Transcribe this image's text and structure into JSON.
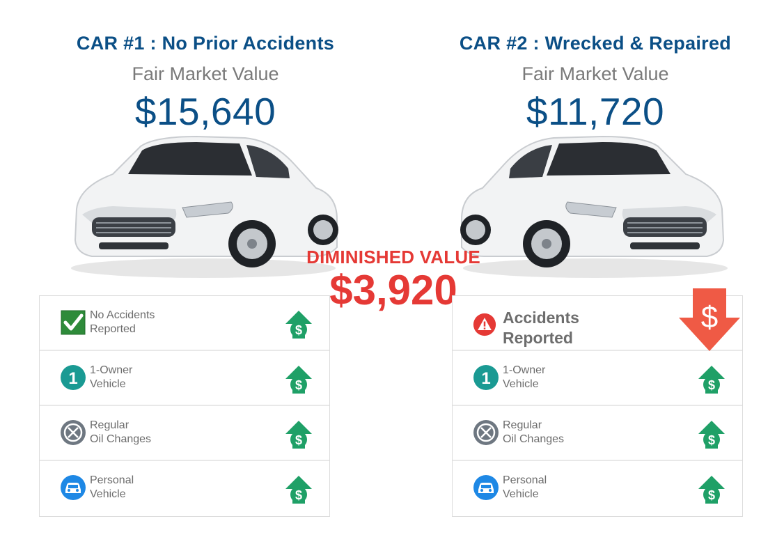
{
  "car1": {
    "title": "CAR #1 : No Prior Accidents",
    "fmv_label": "Fair Market Value",
    "price": "$15,640",
    "features": [
      {
        "line1": "No Accidents",
        "line2": "Reported",
        "icon": "check-icon"
      },
      {
        "line1": "1-Owner",
        "line2": "Vehicle",
        "icon": "one-owner-icon"
      },
      {
        "line1": "Regular",
        "line2": "Oil Changes",
        "icon": "oil-change-icon"
      },
      {
        "line1": "Personal",
        "line2": "Vehicle",
        "icon": "car-icon"
      }
    ]
  },
  "car2": {
    "title": "CAR #2 : Wrecked & Repaired",
    "fmv_label": "Fair Market Value",
    "price": "$11,720",
    "features": [
      {
        "line1": "Accidents",
        "line2": "Reported",
        "icon": "warning-icon"
      },
      {
        "line1": "1-Owner",
        "line2": "Vehicle",
        "icon": "one-owner-icon"
      },
      {
        "line1": "Regular",
        "line2": "Oil Changes",
        "icon": "oil-change-icon"
      },
      {
        "line1": "Personal",
        "line2": "Vehicle",
        "icon": "car-icon"
      }
    ]
  },
  "diminished": {
    "label": "DIMINISHED VALUE",
    "value": "$3,920"
  },
  "colors": {
    "title_blue": "#0b4f86",
    "accent_red": "#e53935",
    "arrow_green": "#1fa067",
    "teal": "#1a9a93",
    "gray": "#7a7a7a"
  },
  "badges": {
    "one_owner_digit": "1",
    "dollar": "$"
  }
}
